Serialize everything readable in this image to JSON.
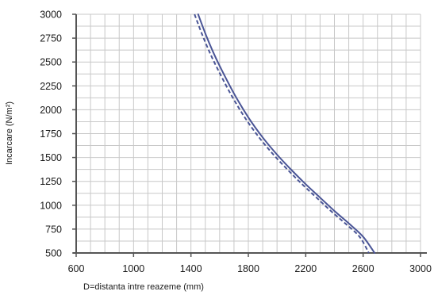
{
  "chart_data": {
    "type": "line",
    "xlabel": "D=distanta intre reazeme (mm)",
    "ylabel": "Incarcare (N/m²)",
    "xlim": [
      600,
      3000
    ],
    "ylim": [
      500,
      3000
    ],
    "xticks": [
      600,
      1000,
      1400,
      1800,
      2200,
      2600,
      3000
    ],
    "yticks": [
      500,
      750,
      1000,
      1250,
      1500,
      1750,
      2000,
      2250,
      2500,
      2750,
      3000
    ],
    "grid": true,
    "colors": {
      "series": "#4a5596",
      "grid": "#c8c8c8",
      "axis": "#555555"
    },
    "series": [
      {
        "style": "solid",
        "x": [
          1450,
          1500,
          1550,
          1600,
          1700,
          1800,
          1900,
          2000,
          2100,
          2200,
          2300,
          2400,
          2500,
          2600,
          2680
        ],
        "y": [
          3000,
          2800,
          2620,
          2460,
          2170,
          1920,
          1710,
          1530,
          1370,
          1220,
          1080,
          940,
          810,
          670,
          500
        ]
      },
      {
        "style": "dashed",
        "x": [
          1425,
          1475,
          1525,
          1575,
          1675,
          1775,
          1875,
          1975,
          2075,
          2175,
          2275,
          2375,
          2475,
          2575,
          2640
        ],
        "y": [
          3000,
          2800,
          2620,
          2460,
          2170,
          1920,
          1710,
          1530,
          1370,
          1220,
          1080,
          940,
          810,
          670,
          500
        ]
      }
    ]
  }
}
